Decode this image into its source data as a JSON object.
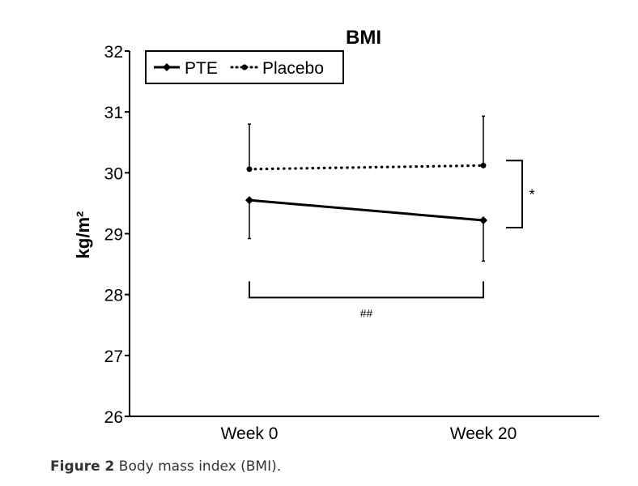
{
  "chart_data": {
    "type": "line",
    "title": "BMI",
    "xlabel": "",
    "ylabel": "kg/m²",
    "categories": [
      "Week 0",
      "Week 20"
    ],
    "ylim": [
      26,
      32
    ],
    "yticks": [
      26,
      27,
      28,
      29,
      30,
      31,
      32
    ],
    "grid": false,
    "legend_position": "top-left",
    "series": [
      {
        "name": "PTE",
        "style": "solid",
        "marker": "diamond",
        "values": [
          29.55,
          29.22
        ],
        "err_upper": [
          30.8,
          30.93
        ],
        "err_lower": [
          28.92,
          28.55
        ]
      },
      {
        "name": "Placebo",
        "style": "dotted",
        "marker": "circle",
        "values": [
          30.06,
          30.12
        ],
        "err_upper": [
          30.8,
          30.93
        ],
        "err_lower": [
          30.06,
          30.12
        ]
      }
    ],
    "annotations": [
      {
        "text": "*",
        "type": "bracket-vertical",
        "x_category": "Week 20",
        "y_range": [
          29.1,
          30.2
        ]
      },
      {
        "text": "##",
        "type": "bracket-horizontal",
        "x_range": [
          "Week 0",
          "Week 20"
        ],
        "y": 27.95
      }
    ]
  },
  "caption": {
    "label": "Figure 2",
    "text": " Body mass index (BMI)."
  }
}
